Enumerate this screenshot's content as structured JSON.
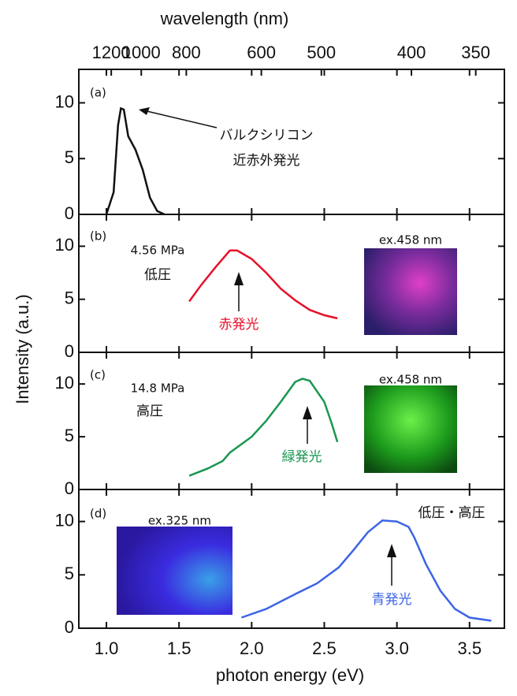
{
  "chart_data": [
    {
      "type": "line",
      "label": "(a)",
      "x2label": "wavelength (nm)",
      "x2ticks": [
        1200,
        1000,
        800,
        600,
        500,
        400,
        350
      ],
      "ylabel": "Intensity (a.u.)",
      "annotations": [
        "バルクシリコン",
        "近赤外発光"
      ],
      "ylim": [
        0,
        13
      ],
      "yticks": [
        0,
        5,
        10
      ],
      "series": [
        {
          "color": "#111111",
          "x": [
            1.0,
            1.05,
            1.08,
            1.1,
            1.12,
            1.15,
            1.2,
            1.25,
            1.3,
            1.35,
            1.4
          ],
          "values": [
            0,
            2,
            8,
            9.5,
            9.4,
            7,
            5.8,
            4,
            1.5,
            0.3,
            0
          ]
        }
      ]
    },
    {
      "type": "line",
      "label": "(b)",
      "annotations": [
        "4.56 MPa",
        "低圧",
        "赤発光",
        "ex.458 nm"
      ],
      "ylim": [
        0,
        13
      ],
      "yticks": [
        0,
        5,
        10
      ],
      "series": [
        {
          "color": "#e8102a",
          "x": [
            1.57,
            1.65,
            1.75,
            1.85,
            1.9,
            2.0,
            2.1,
            2.2,
            2.3,
            2.4,
            2.5,
            2.59
          ],
          "values": [
            4.8,
            6.3,
            8,
            9.6,
            9.6,
            8.8,
            7.5,
            6,
            4.9,
            4,
            3.5,
            3.2
          ]
        }
      ]
    },
    {
      "type": "line",
      "label": "(c)",
      "annotations": [
        "14.8 MPa",
        "高圧",
        "緑発光",
        "ex.458 nm"
      ],
      "ylim": [
        0,
        13
      ],
      "yticks": [
        0,
        5,
        10
      ],
      "series": [
        {
          "color": "#1a9650",
          "x": [
            1.57,
            1.7,
            1.8,
            1.85,
            2.0,
            2.1,
            2.2,
            2.3,
            2.35,
            2.4,
            2.5,
            2.55,
            2.59
          ],
          "values": [
            1.3,
            2,
            2.7,
            3.5,
            5,
            6.5,
            8.3,
            10.2,
            10.5,
            10.3,
            8.3,
            6.3,
            4.5
          ]
        }
      ]
    },
    {
      "type": "line",
      "label": "(d)",
      "annotations": [
        "ex.325 nm",
        "低圧・高圧",
        "青発光"
      ],
      "xlabel": "photon energy (eV)",
      "xlim": [
        0.81,
        3.74
      ],
      "xticks": [
        {
          "value": 1,
          "label": "1.0"
        },
        {
          "value": 1.5,
          "label": "1.5"
        },
        {
          "value": 2,
          "label": "2.0"
        },
        {
          "value": 2.5,
          "label": "2.5"
        },
        {
          "value": 3,
          "label": "3.0"
        },
        {
          "value": 3.5,
          "label": "3.5"
        }
      ],
      "ylim": [
        0,
        13
      ],
      "yticks": [
        0,
        5,
        10
      ],
      "series": [
        {
          "color": "#3c64e6",
          "x": [
            1.93,
            2.1,
            2.3,
            2.45,
            2.6,
            2.7,
            2.8,
            2.9,
            3.0,
            3.08,
            3.12,
            3.2,
            3.3,
            3.4,
            3.5,
            3.65
          ],
          "values": [
            1,
            1.8,
            3.2,
            4.2,
            5.7,
            7.3,
            9,
            10.1,
            10,
            9.5,
            8.5,
            6,
            3.5,
            1.8,
            1,
            0.7
          ]
        }
      ]
    }
  ]
}
